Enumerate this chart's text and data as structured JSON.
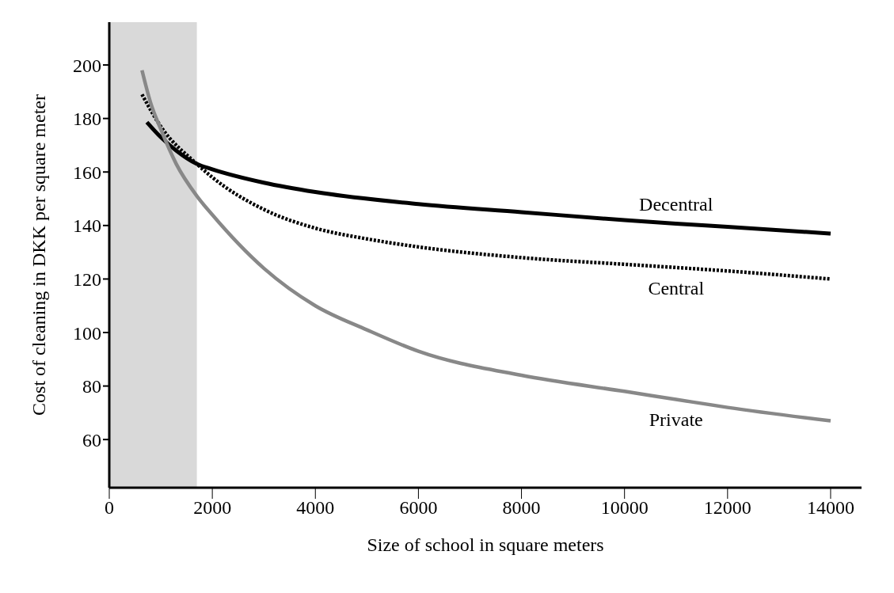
{
  "chart_data": {
    "type": "line",
    "xlabel": "Size of school in square meters",
    "ylabel": "Cost of cleaning in DKK per square meter",
    "xlim": [
      0,
      14600
    ],
    "xticks": [
      0,
      2000,
      4000,
      6000,
      8000,
      10000,
      12000,
      14000
    ],
    "ylim": [
      42,
      216
    ],
    "yticks": [
      60,
      80,
      100,
      120,
      140,
      160,
      180,
      200
    ],
    "grid": false,
    "legend": false,
    "marker": "none",
    "bands": [
      {
        "axis": "x",
        "from": 0,
        "to": 1700,
        "color": "#d9d9d9"
      }
    ],
    "series": [
      {
        "name": "Decentral",
        "color": "#000000",
        "line_style": "solid",
        "x": [
          730,
          1000,
          1300,
          1700,
          2000,
          3000,
          4000,
          6000,
          8000,
          10000,
          11000,
          12000,
          14000
        ],
        "values": [
          178.6,
          173,
          168,
          163,
          161,
          156,
          152.5,
          148,
          145,
          142,
          140.7,
          139.5,
          137
        ]
      },
      {
        "name": "Central",
        "color": "#000000",
        "line_style": "dotted",
        "x": [
          635,
          1000,
          1700,
          2000,
          3000,
          4000,
          5000,
          6000,
          8000,
          10000,
          11000,
          12000,
          14000
        ],
        "values": [
          189,
          177,
          163,
          158,
          146,
          139,
          135,
          132,
          128,
          125.5,
          124.3,
          123,
          120
        ]
      },
      {
        "name": "Private",
        "color": "#888888",
        "line_style": "solid",
        "x": [
          635,
          800,
          1000,
          1300,
          1700,
          2000,
          3000,
          4000,
          5000,
          6000,
          8000,
          10000,
          11000,
          12000,
          14000
        ],
        "values": [
          198,
          186,
          176,
          163,
          151,
          144,
          124,
          110,
          101,
          93,
          84,
          78,
          75,
          72,
          67
        ]
      }
    ]
  }
}
